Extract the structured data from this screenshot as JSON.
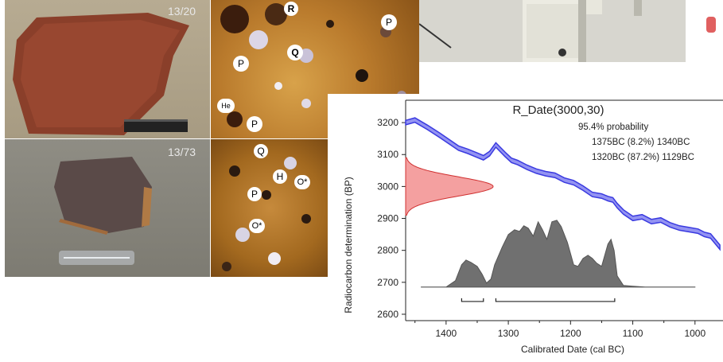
{
  "photos": {
    "sherd_top_label": "13/20",
    "sherd_bottom_label": "13/73"
  },
  "thin_sections": {
    "top_labels": [
      "R",
      "P",
      "Q",
      "P",
      "He",
      "P",
      "P"
    ],
    "bottom_labels": [
      "Q",
      "H",
      "O",
      "P",
      "O"
    ],
    "star_marker": "*"
  },
  "partial_button_color": "#e06060",
  "chart_data": {
    "type": "area",
    "title": "R_Date(3000,30)",
    "annotations": [
      "95.4% probability",
      "1375BC (8.2%) 1340BC",
      "1320BC (87.2%) 1129BC"
    ],
    "xlabel": "Calibrated Date (cal BC)",
    "ylabel": "Radiocarbon determination (BP)",
    "x_ticks": [
      "1400",
      "1300",
      "1200",
      "1100",
      "1000"
    ],
    "y_ticks": [
      "3200",
      "3100",
      "3000",
      "2900",
      "2800",
      "2700",
      "2600"
    ],
    "xlim": [
      1465,
      955
    ],
    "ylim": [
      2580,
      3270
    ],
    "calibration_curve": {
      "color": "#3a3ae0",
      "x": [
        1465,
        1450,
        1430,
        1410,
        1395,
        1380,
        1365,
        1350,
        1340,
        1330,
        1320,
        1305,
        1295,
        1285,
        1270,
        1255,
        1240,
        1225,
        1210,
        1195,
        1180,
        1165,
        1150,
        1140,
        1132,
        1125,
        1115,
        1100,
        1085,
        1070,
        1055,
        1040,
        1025,
        1010,
        995,
        985,
        975,
        960
      ],
      "y": [
        3200,
        3208,
        3185,
        3160,
        3140,
        3120,
        3110,
        3098,
        3090,
        3103,
        3130,
        3100,
        3082,
        3075,
        3060,
        3048,
        3040,
        3035,
        3020,
        3012,
        2995,
        2975,
        2970,
        2962,
        2958,
        2940,
        2920,
        2900,
        2905,
        2890,
        2895,
        2880,
        2870,
        2865,
        2860,
        2850,
        2845,
        2810
      ],
      "width_bp": 14
    },
    "measurement": {
      "mean": 3000,
      "sigma": 30,
      "color": "#f08080"
    },
    "posterior": {
      "color": "#707070",
      "x": [
        1440,
        1400,
        1385,
        1375,
        1368,
        1360,
        1350,
        1342,
        1335,
        1328,
        1322,
        1310,
        1300,
        1290,
        1282,
        1275,
        1268,
        1260,
        1252,
        1245,
        1238,
        1230,
        1222,
        1215,
        1205,
        1195,
        1188,
        1180,
        1172,
        1165,
        1158,
        1150,
        1140,
        1135,
        1130,
        1125,
        1115,
        1100,
        1080,
        1040,
        1000
      ],
      "density": [
        0.0,
        0.0,
        0.08,
        0.28,
        0.34,
        0.31,
        0.26,
        0.16,
        0.05,
        0.1,
        0.28,
        0.5,
        0.66,
        0.72,
        0.7,
        0.77,
        0.74,
        0.64,
        0.82,
        0.72,
        0.6,
        0.82,
        0.84,
        0.76,
        0.56,
        0.28,
        0.26,
        0.36,
        0.4,
        0.36,
        0.3,
        0.26,
        0.54,
        0.6,
        0.46,
        0.14,
        0.02,
        0.01,
        0.0,
        0.0,
        0.0
      ]
    },
    "hpd_ranges": [
      [
        1375,
        1340
      ],
      [
        1320,
        1129
      ]
    ],
    "grid": false
  }
}
